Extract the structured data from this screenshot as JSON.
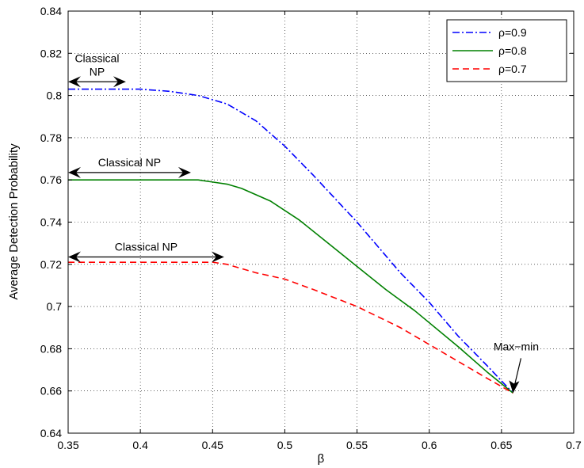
{
  "chart_data": {
    "type": "line",
    "title": "",
    "xlabel": "β",
    "ylabel": "Average Detection Probability",
    "xlim": [
      0.35,
      0.7
    ],
    "ylim": [
      0.64,
      0.84
    ],
    "grid": true,
    "legend_position": "top-right",
    "x_ticks": [
      "0.35",
      "0.4",
      "0.45",
      "0.5",
      "0.55",
      "0.6",
      "0.65",
      "0.7"
    ],
    "y_ticks": [
      "0.64",
      "0.66",
      "0.68",
      "0.7",
      "0.72",
      "0.74",
      "0.76",
      "0.78",
      "0.8",
      "0.82",
      "0.84"
    ],
    "series": [
      {
        "name": "ρ=0.9",
        "color": "#0000ff",
        "style": "dashdot",
        "x": [
          0.35,
          0.4,
          0.42,
          0.44,
          0.46,
          0.48,
          0.5,
          0.52,
          0.55,
          0.58,
          0.6,
          0.62,
          0.64,
          0.658
        ],
        "y": [
          0.803,
          0.803,
          0.802,
          0.8,
          0.796,
          0.788,
          0.776,
          0.762,
          0.74,
          0.716,
          0.702,
          0.686,
          0.672,
          0.659
        ]
      },
      {
        "name": "ρ=0.8",
        "color": "#008000",
        "style": "solid",
        "x": [
          0.35,
          0.4,
          0.43,
          0.44,
          0.45,
          0.46,
          0.47,
          0.49,
          0.51,
          0.53,
          0.55,
          0.57,
          0.59,
          0.62,
          0.64,
          0.658
        ],
        "y": [
          0.76,
          0.76,
          0.76,
          0.76,
          0.759,
          0.758,
          0.756,
          0.75,
          0.741,
          0.73,
          0.719,
          0.708,
          0.698,
          0.681,
          0.669,
          0.659
        ]
      },
      {
        "name": "ρ=0.7",
        "color": "#ff0000",
        "style": "dashed",
        "x": [
          0.35,
          0.4,
          0.45,
          0.46,
          0.47,
          0.48,
          0.5,
          0.52,
          0.55,
          0.58,
          0.6,
          0.62,
          0.64,
          0.658
        ],
        "y": [
          0.721,
          0.721,
          0.721,
          0.72,
          0.718,
          0.716,
          0.713,
          0.708,
          0.7,
          0.69,
          0.682,
          0.674,
          0.666,
          0.659
        ]
      }
    ],
    "annotations": [
      {
        "lines": [
          "Classical",
          "NP"
        ],
        "x_from": 0.35,
        "x_to": 0.39,
        "y": 0.8065
      },
      {
        "lines": [
          "Classical NP"
        ],
        "x_from": 0.35,
        "x_to": 0.435,
        "y": 0.7635
      },
      {
        "lines": [
          "Classical NP"
        ],
        "x_from": 0.35,
        "x_to": 0.458,
        "y": 0.7235
      },
      {
        "lines": [
          "Max−min"
        ],
        "x": 0.658,
        "y": 0.659
      }
    ]
  }
}
